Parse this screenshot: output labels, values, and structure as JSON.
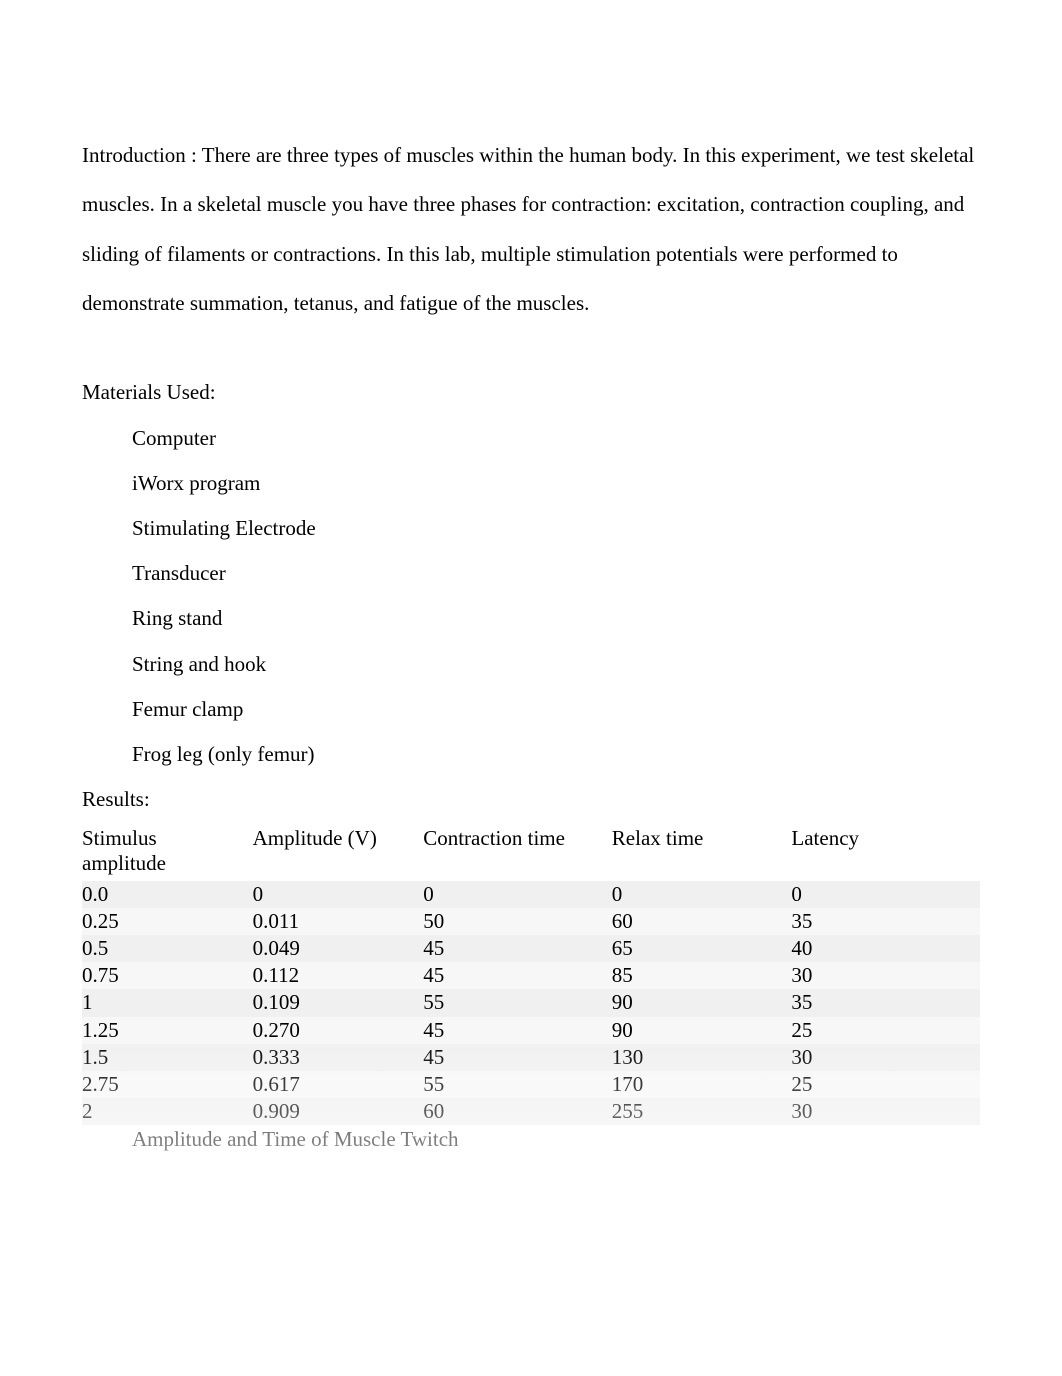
{
  "intro": "Introduction : There are three types of muscles within the human body. In this experiment, we test skeletal muscles. In a skeletal muscle you have three phases for contraction: excitation, contraction coupling, and sliding of filaments or contractions. In this lab, multiple stimulation potentials were performed to demonstrate summation, tetanus, and fatigue of the muscles.",
  "materials_heading": "Materials Used:",
  "materials": [
    "Computer",
    "iWorx program",
    "Stimulating Electrode",
    "Transducer",
    "Ring stand",
    "String and hook",
    "Femur clamp",
    "Frog leg (only femur)"
  ],
  "results_heading": "Results:",
  "table": {
    "columns": [
      {
        "lines": [
          "Stimulus",
          "amplitude"
        ]
      },
      {
        "lines": [
          "Amplitude (V)"
        ]
      },
      {
        "lines": [
          "Contraction time"
        ]
      },
      {
        "lines": [
          "Relax time"
        ]
      },
      {
        "lines": [
          "Latency"
        ]
      }
    ],
    "rows": [
      [
        "0.0",
        "0",
        "0",
        "0",
        "0"
      ],
      [
        "0.25",
        "0.011",
        "50",
        "60",
        "35"
      ],
      [
        "0.5",
        "0.049",
        "45",
        "65",
        "40"
      ],
      [
        "0.75",
        "0.112",
        "45",
        "85",
        "30"
      ],
      [
        "1",
        "0.109",
        "55",
        "90",
        "35"
      ],
      [
        "1.25",
        "0.270",
        "45",
        "90",
        "25"
      ],
      [
        "1.5",
        "0.333",
        "45",
        "130",
        "30"
      ],
      [
        "2.75",
        "0.617",
        "55",
        "170",
        "25"
      ],
      [
        "2",
        "0.909",
        "60",
        "255",
        "30"
      ]
    ],
    "row_bg_even": "#f0f0f0",
    "row_bg_odd": "#f7f7f7",
    "header_bg": "#ffffff",
    "font_family": "Times New Roman",
    "font_size_pt": 16
  },
  "caption": "Amplitude and Time of Muscle Twitch",
  "colors": {
    "page_bg": "#ffffff",
    "text": "#000000"
  }
}
